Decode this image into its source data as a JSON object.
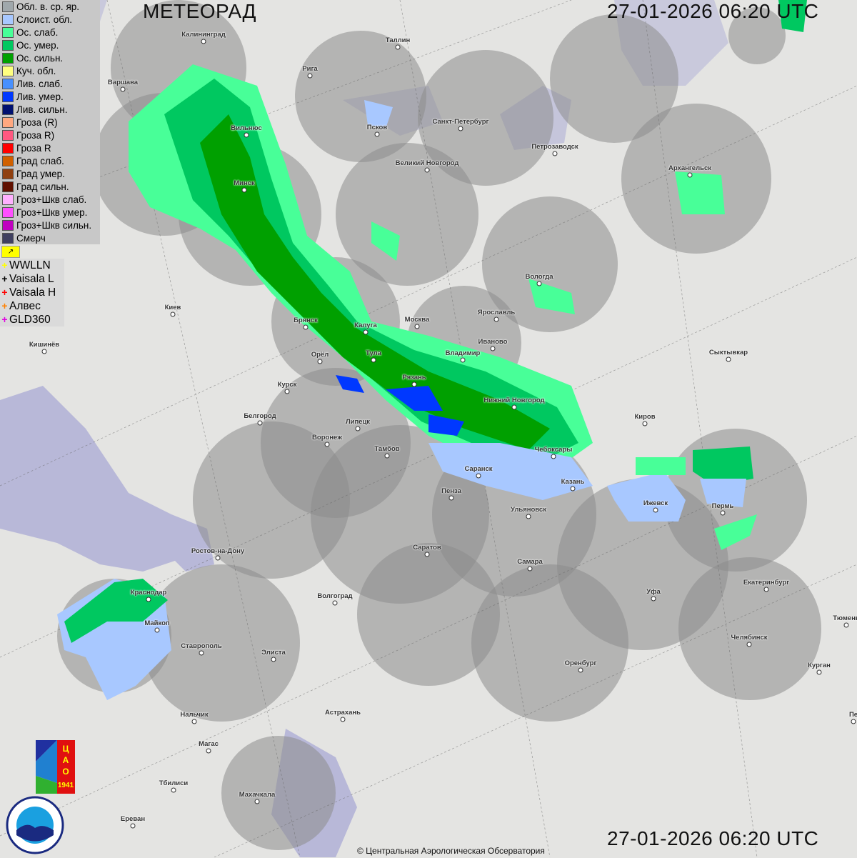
{
  "header": {
    "title": "МЕТЕОРАД",
    "timestamp_top": "27-01-2026  06:20 UTC",
    "timestamp_bottom": "27-01-2026  06:20 UTC"
  },
  "legend": {
    "items": [
      {
        "label": "Обл. в. ср. яр.",
        "color": "#a0a8ac"
      },
      {
        "label": "Слоист. обл.",
        "color": "#a8c8ff"
      },
      {
        "label": "Ос. слаб.",
        "color": "#48ff98"
      },
      {
        "label": "Ос. умер.",
        "color": "#00c860"
      },
      {
        "label": "Ос. сильн.",
        "color": "#00a000"
      },
      {
        "label": "Куч. обл.",
        "color": "#ffff80"
      },
      {
        "label": "Лив. слаб.",
        "color": "#4890ff"
      },
      {
        "label": "Лив. умер.",
        "color": "#0038ff"
      },
      {
        "label": "Лив. сильн.",
        "color": "#001070"
      },
      {
        "label": "Гроза (R)",
        "color": "#ffa880"
      },
      {
        "label": "Гроза R)",
        "color": "#ff5880"
      },
      {
        "label": "Гроза R",
        "color": "#ff0000"
      },
      {
        "label": "Град слаб.",
        "color": "#d06000"
      },
      {
        "label": "Град умер.",
        "color": "#904010"
      },
      {
        "label": "Град сильн.",
        "color": "#601000"
      },
      {
        "label": "Гроз+Шкв слаб.",
        "color": "#ffb0ff"
      },
      {
        "label": "Гроз+Шкв умер.",
        "color": "#ff50ff"
      },
      {
        "label": "Гроз+Шкв сильн.",
        "color": "#c000c0"
      },
      {
        "label": "Смерч",
        "color": "#404060"
      }
    ],
    "flag_icon": "R-flag-icon"
  },
  "lightning": [
    {
      "label": "WWLLN",
      "color": "#ffff00"
    },
    {
      "label": "Vaisala L",
      "color": "#000000"
    },
    {
      "label": "Vaisala H",
      "color": "#ff0000"
    },
    {
      "label": "Алвес",
      "color": "#ff8000"
    },
    {
      "label": "GLD360",
      "color": "#e000e0"
    }
  ],
  "cities": [
    "Калининград",
    "Таллин",
    "Рига",
    "Варшава",
    "Санкт-Петербург",
    "Псков",
    "Вильнюс",
    "Петрозаводск",
    "Великий Новгород",
    "Архангельск",
    "Минск",
    "Вологда",
    "Ярославль",
    "Киев",
    "Брянск",
    "Калуга",
    "Москва",
    "Иваново",
    "Кишинёв",
    "Орёл",
    "Тула",
    "Владимир",
    "Сыктывкар",
    "Курск",
    "Рязань",
    "Нижний Новгород",
    "Белгород",
    "Липецк",
    "Киров",
    "Воронеж",
    "Тамбов",
    "Чебоксары",
    "Саранск",
    "Казань",
    "Пенза",
    "Ижевск",
    "Пермь",
    "Ульяновск",
    "Ростов-на-Дону",
    "Саратов",
    "Самара",
    "Екатеринбург",
    "Краснодар",
    "Волгоград",
    "Уфа",
    "Майкоп",
    "Тюмень",
    "Челябинск",
    "Ставрополь",
    "Элиста",
    "Оренбург",
    "Курган",
    "Астрахань",
    "Нальчик",
    "Пе",
    "Магас",
    "Тбилиси",
    "Махачкала",
    "Ереван"
  ],
  "logos": {
    "cao": "ЦАО 1941",
    "roshydromet": "РОСГИДРОМЕТ ROSHYDROMET"
  },
  "copyright": "© Центральная Аэрологическая Обсерватория"
}
